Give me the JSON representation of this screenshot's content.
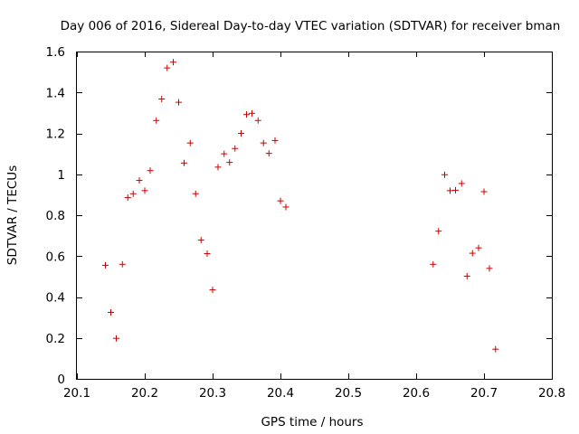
{
  "chart_data": {
    "type": "scatter",
    "title": "Day 006 of 2016, Sidereal Day-to-day VTEC variation (SDTVAR) for receiver bman",
    "xlabel": "GPS time / hours",
    "ylabel": "SDTVAR / TECUs",
    "xlim": [
      20.1,
      20.8
    ],
    "ylim": [
      0,
      1.6
    ],
    "xticks": [
      20.1,
      20.2,
      20.3,
      20.4,
      20.5,
      20.6,
      20.7,
      20.8
    ],
    "yticks": [
      0,
      0.2,
      0.4,
      0.6,
      0.8,
      1,
      1.2,
      1.4,
      1.6
    ],
    "xtick_labels": [
      "20.1",
      "20.2",
      "20.3",
      "20.4",
      "20.5",
      "20.6",
      "20.7",
      "20.8"
    ],
    "ytick_labels": [
      "0",
      "0.2",
      "0.4",
      "0.6",
      "0.8",
      "1",
      "1.2",
      "1.4",
      "1.6"
    ],
    "marker": "+",
    "marker_color": "#cc0000",
    "grid": false,
    "series": [
      {
        "name": "SDTVAR",
        "x": [
          20.142,
          20.15,
          20.158,
          20.167,
          20.175,
          20.183,
          20.192,
          20.2,
          20.208,
          20.217,
          20.225,
          20.233,
          20.242,
          20.25,
          20.258,
          20.267,
          20.275,
          20.283,
          20.292,
          20.3,
          20.308,
          20.317,
          20.325,
          20.333,
          20.342,
          20.35,
          20.358,
          20.367,
          20.375,
          20.383,
          20.392,
          20.4,
          20.408,
          20.625,
          20.633,
          20.642,
          20.65,
          20.658,
          20.667,
          20.675,
          20.683,
          20.692,
          20.7,
          20.708,
          20.717
        ],
        "y": [
          0.555,
          0.325,
          0.198,
          0.56,
          0.886,
          0.905,
          0.97,
          0.92,
          1.018,
          1.263,
          1.368,
          1.52,
          1.548,
          1.352,
          1.055,
          1.153,
          0.905,
          0.678,
          0.612,
          0.435,
          1.035,
          1.1,
          1.058,
          1.126,
          1.2,
          1.292,
          1.298,
          1.263,
          1.153,
          1.102,
          1.165,
          0.87,
          0.84,
          0.56,
          0.722,
          0.998,
          0.92,
          0.922,
          0.955,
          0.502,
          0.614,
          0.64,
          0.915,
          0.54,
          0.145
        ]
      }
    ]
  }
}
